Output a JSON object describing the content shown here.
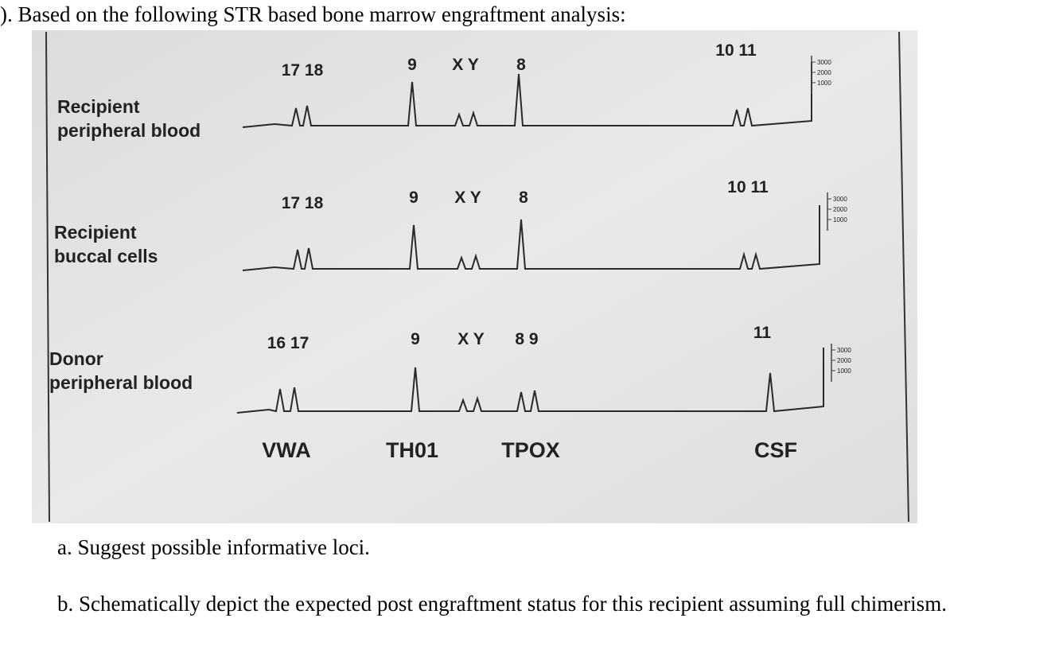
{
  "question": {
    "heading": "). Based on the following STR based bone marrow engraftment analysis:",
    "items": [
      "a. Suggest possible informative loci.",
      "b. Schematically depict the expected post engraftment status for this recipient assuming full chimerism."
    ]
  },
  "figure": {
    "rows": [
      {
        "label_lines": [
          "Recipient",
          "peripheral blood"
        ],
        "alleles": [
          "17 18",
          "9",
          "X Y",
          "8",
          "10 11"
        ],
        "scale": [
          "3000",
          "2000",
          "1000"
        ]
      },
      {
        "label_lines": [
          "Recipient",
          "buccal cells"
        ],
        "alleles": [
          "17 18",
          "9",
          "X Y",
          "8",
          "10 11"
        ],
        "scale": [
          "3000",
          "2000",
          "1000"
        ]
      },
      {
        "label_lines": [
          "Donor",
          "peripheral blood"
        ],
        "alleles": [
          "16 17",
          "9",
          "X Y",
          "8 9",
          "11"
        ],
        "scale": [
          "3000",
          "2000",
          "1000"
        ]
      }
    ],
    "loci": [
      "VWA",
      "TH01",
      "TPOX",
      "CSF"
    ]
  }
}
